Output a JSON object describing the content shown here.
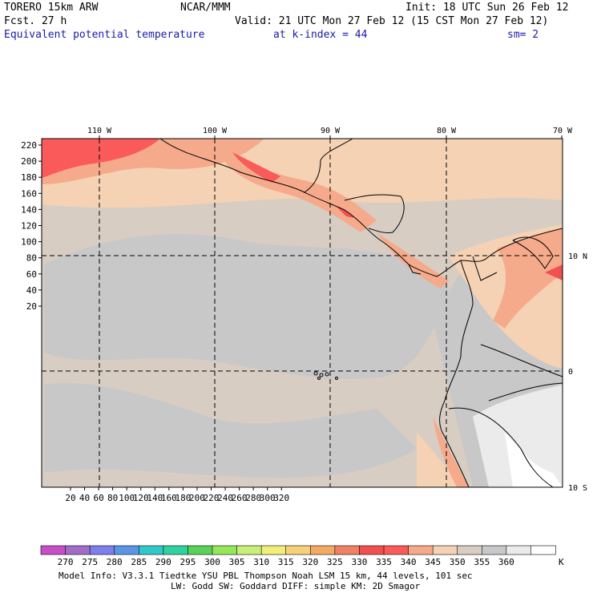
{
  "header": {
    "model": "TORERO  15km ARW",
    "org": "NCAR/MMM",
    "init": "Init: 18 UTC Sun 26 Feb 12",
    "fcst": "Fcst.   27 h",
    "valid": "Valid: 21 UTC Mon 27 Feb 12 (15 CST Mon 27 Feb 12)",
    "field": "Equivalent potential temperature",
    "level": "at k-index =  44",
    "smoothing": "sm= 2"
  },
  "map": {
    "lon_labels": [
      "110 W",
      "100 W",
      "90 W",
      "80 W",
      "70 W"
    ],
    "lat_labels": [
      "10 N",
      "0",
      "10 S"
    ],
    "y_ticks": [
      "220",
      "200",
      "180",
      "160",
      "140",
      "120",
      "100",
      "80",
      "60",
      "40",
      "20"
    ],
    "x_ticks": [
      "20",
      "40",
      "60",
      "80",
      "100",
      "120",
      "140",
      "160",
      "180",
      "200",
      "220",
      "240",
      "260",
      "280",
      "300",
      "320"
    ]
  },
  "colorbar": {
    "labels": [
      "270",
      "275",
      "280",
      "285",
      "290",
      "295",
      "300",
      "305",
      "310",
      "315",
      "320",
      "325",
      "330",
      "335",
      "340",
      "345",
      "350",
      "355",
      "360"
    ],
    "unit": "K",
    "colors": [
      "#c84ec8",
      "#a06ec8",
      "#7e7eec",
      "#5a96e6",
      "#30c8c8",
      "#30d2a0",
      "#5ad25a",
      "#96e65a",
      "#c8f078",
      "#f0f078",
      "#f5d278",
      "#f5aa64",
      "#f08264",
      "#f05050",
      "#fa5a5a",
      "#f5aa8c",
      "#f5d2b4",
      "#d7cdc3",
      "#c8c8c8",
      "#ebebeb",
      "#ffffff"
    ]
  },
  "footer": {
    "line1": "Model Info: V3.3.1   Tiedtke YSU PBL  Thompson    Noah LSM  15 km,   44 levels,  101 sec",
    "line2": "LW: Godd SW: Goddard DIFF: simple KM: 2D Smagor"
  }
}
